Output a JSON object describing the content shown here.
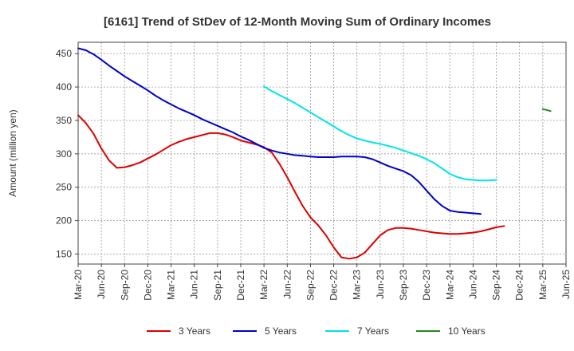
{
  "chart_data": {
    "type": "line",
    "title": "[6161]  Trend of StDev of 12-Month Moving Sum of Ordinary Incomes",
    "xlabel": "",
    "ylabel": "Amount (million yen)",
    "ylim": [
      135,
      467
    ],
    "yticks": [
      150,
      200,
      250,
      300,
      350,
      400,
      450
    ],
    "grid": true,
    "legend_position": "bottom",
    "x_tick_labels": [
      "Mar-20",
      "Jun-20",
      "Sep-20",
      "Dec-20",
      "Mar-21",
      "Jun-21",
      "Sep-21",
      "Dec-21",
      "Mar-22",
      "Jun-22",
      "Sep-22",
      "Dec-22",
      "Mar-23",
      "Jun-23",
      "Sep-23",
      "Dec-23",
      "Mar-24",
      "Jun-24",
      "Sep-24",
      "Dec-24",
      "Mar-25",
      "Jun-25"
    ],
    "series": [
      {
        "name": "3 Years",
        "color": "#dd0000",
        "start_index": 0,
        "values": [
          358,
          346,
          330,
          308,
          290,
          279,
          280,
          283,
          287,
          293,
          299,
          306,
          313,
          318,
          322,
          325,
          328,
          331,
          331,
          329,
          325,
          320,
          317,
          314,
          310,
          302,
          285,
          265,
          243,
          222,
          205,
          193,
          178,
          160,
          145,
          143,
          145,
          152,
          165,
          178,
          186,
          189,
          189,
          188,
          186,
          184,
          182,
          181,
          180,
          180,
          181,
          182,
          184,
          187,
          190,
          192
        ]
      },
      {
        "name": "5 Years",
        "color": "#0000cc",
        "start_index": 0,
        "values": [
          458,
          455,
          449,
          441,
          432,
          424,
          416,
          409,
          402,
          395,
          387,
          380,
          374,
          368,
          363,
          358,
          352,
          347,
          342,
          337,
          332,
          326,
          321,
          315,
          309,
          305,
          302,
          300,
          298,
          297,
          296,
          295,
          295,
          295,
          296,
          296,
          296,
          295,
          292,
          287,
          282,
          278,
          274,
          268,
          258,
          245,
          232,
          222,
          215,
          213,
          212,
          211,
          210
        ]
      },
      {
        "name": "7 Years",
        "color": "#00e5e5",
        "start_index": 24,
        "values": [
          401,
          394,
          388,
          382,
          376,
          369,
          362,
          355,
          348,
          341,
          334,
          328,
          323,
          320,
          317,
          315,
          312,
          309,
          305,
          301,
          297,
          292,
          286,
          278,
          270,
          265,
          262,
          261,
          260,
          260,
          261
        ]
      },
      {
        "name": "10 Years",
        "color": "#228B22",
        "start_index": 60,
        "values": [
          367,
          364
        ]
      }
    ]
  }
}
